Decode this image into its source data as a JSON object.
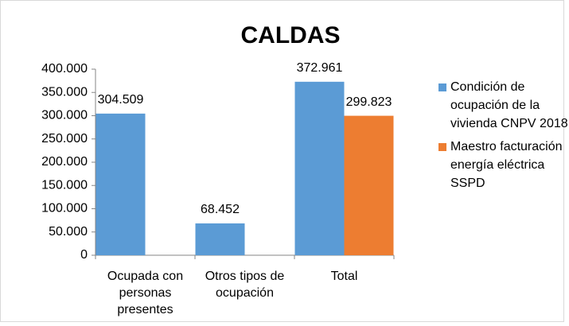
{
  "chart_data": {
    "type": "bar",
    "title": "CALDAS",
    "categories": [
      "Ocupada con personas presentes",
      "Otros tipos de ocupación",
      "Total"
    ],
    "series": [
      {
        "name": "Condición de ocupación de la vivienda CNPV 2018",
        "color": "#5b9bd5",
        "values": [
          304509,
          68452,
          372961
        ],
        "value_labels": [
          "304.509",
          "68.452",
          "372.961"
        ]
      },
      {
        "name": "Maestro facturación energía eléctrica SSPD",
        "color": "#ed7d31",
        "values": [
          null,
          null,
          299823
        ],
        "value_labels": [
          null,
          null,
          "299.823"
        ]
      }
    ],
    "ylim": [
      0,
      400000
    ],
    "yticks": [
      0,
      {
        "value": 50000,
        "label": "50.000"
      },
      {
        "value": 100000,
        "label": "100.000"
      },
      {
        "value": 150000,
        "label": "150.000"
      },
      {
        "value": 200000,
        "label": "200.000"
      },
      {
        "value": 250000,
        "label": "250.000"
      },
      {
        "value": 300000,
        "label": "300.000"
      },
      {
        "value": 350000,
        "label": "350.000"
      },
      {
        "value": 400000,
        "label": "400.000"
      }
    ],
    "legend": "right"
  }
}
